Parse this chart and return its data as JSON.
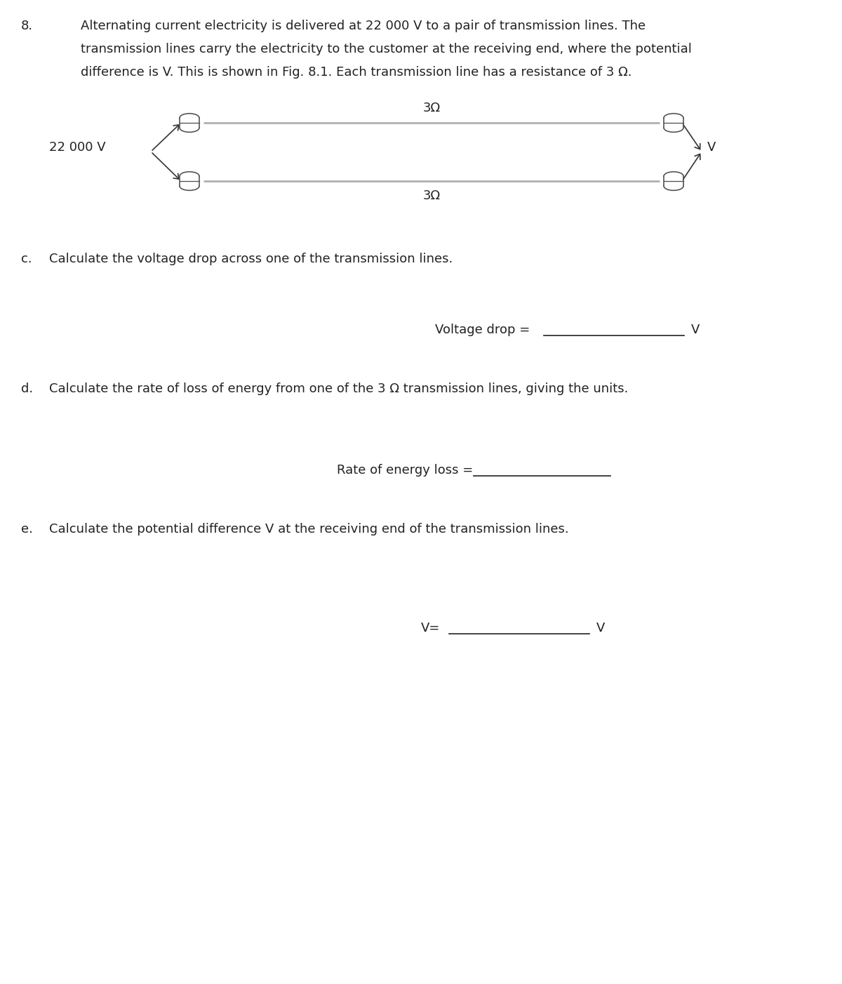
{
  "background_color": "#ffffff",
  "fig_width": 12.0,
  "fig_height": 14.02,
  "dpi": 100,
  "question_number": "8.",
  "intro_text_lines": [
    "Alternating current electricity is delivered at 22 000 V to a pair of transmission lines. The",
    "transmission lines carry the electricity to the customer at the receiving end, where the potential",
    "difference is V. This is shown in Fig. 8.1. Each transmission line has a resistance of 3 Ω."
  ],
  "diagram": {
    "left_label": "22 000 V",
    "resistance_label_top": "3Ω",
    "resistance_label_bottom": "3Ω",
    "right_label": "V",
    "line_color": "#b0b0b0",
    "arrow_color": "#333333",
    "text_color": "#222222"
  },
  "part_c": {
    "letter": "c.",
    "text": "Calculate the voltage drop across one of the transmission lines.",
    "answer_label": "Voltage drop =",
    "answer_unit": "V"
  },
  "part_d": {
    "letter": "d.",
    "text": "Calculate the rate of loss of energy from one of the 3 Ω transmission lines, giving the units.",
    "answer_label": "Rate of energy loss ="
  },
  "part_e": {
    "letter": "e.",
    "text": "Calculate the potential difference V at the receiving end of the transmission lines.",
    "answer_label": "V=",
    "answer_unit": "V"
  },
  "font_size_body": 13,
  "font_size_small": 12
}
